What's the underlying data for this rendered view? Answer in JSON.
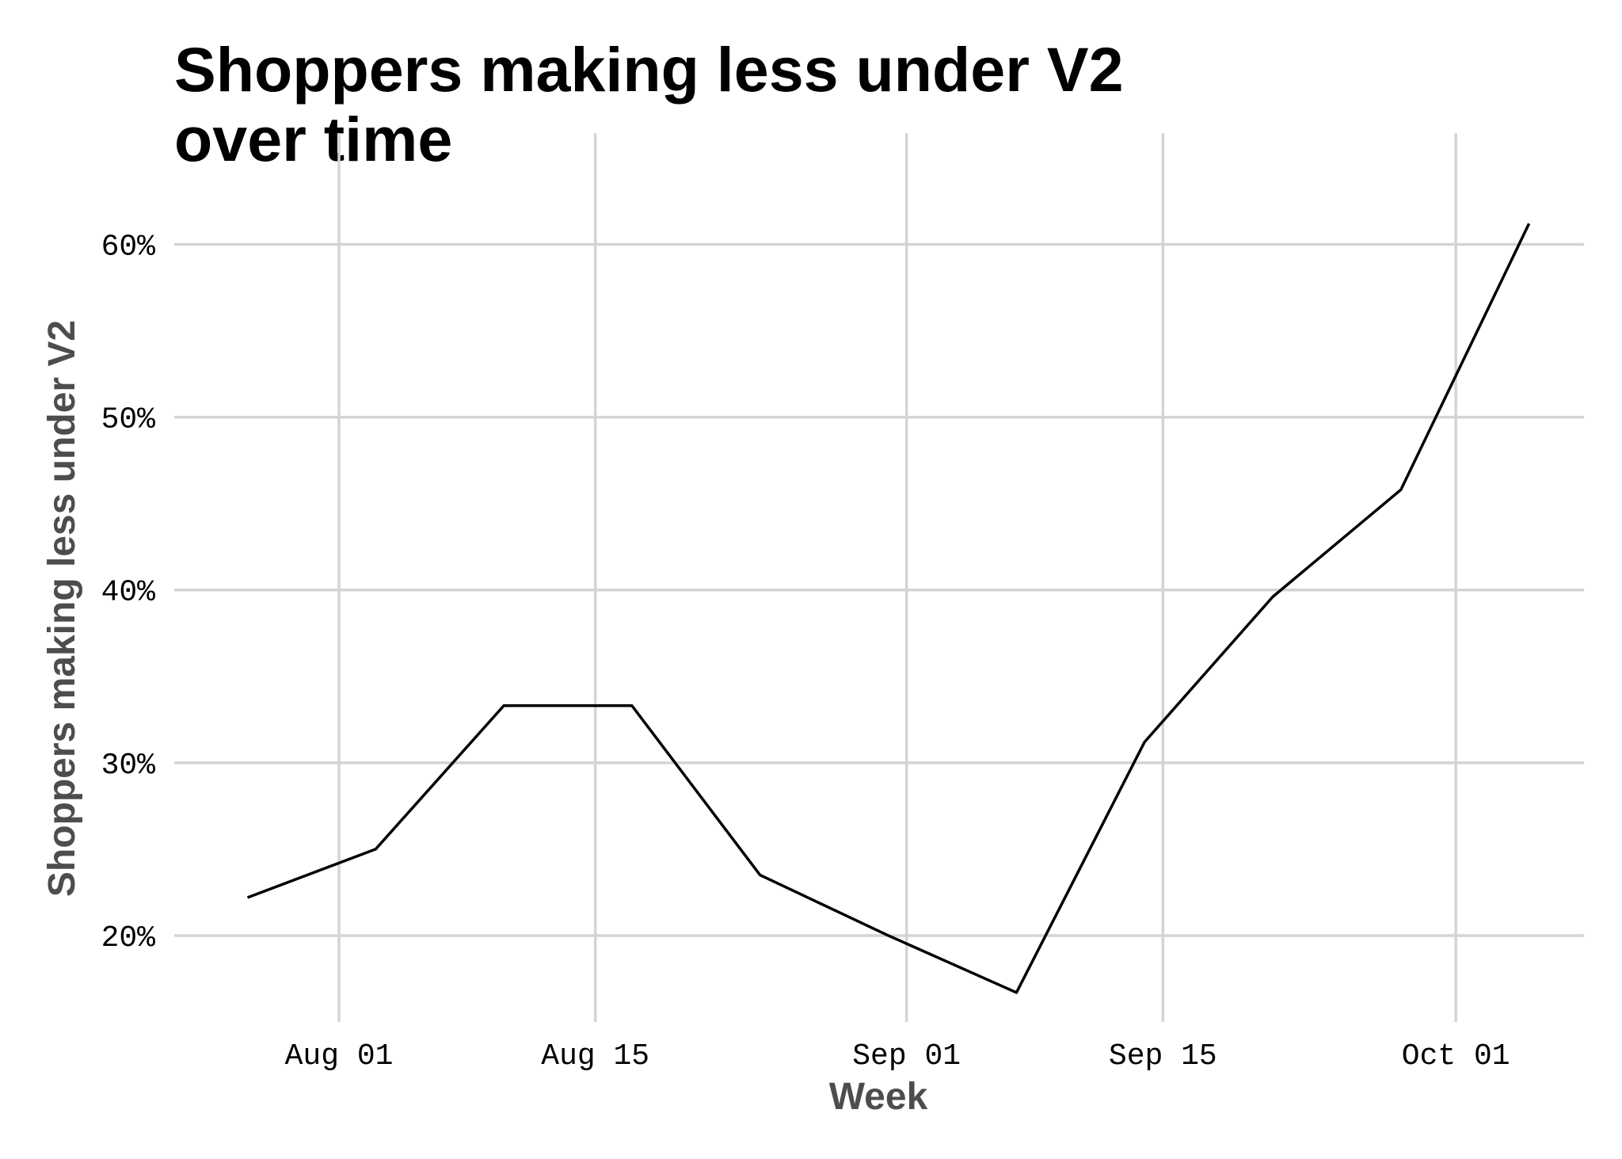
{
  "chart_data": {
    "type": "line",
    "title_lines": [
      "Shoppers making less under V2",
      "over time"
    ],
    "xlabel": "Week",
    "ylabel": "Shoppers making less under V2",
    "x_ticks": [
      "Aug 01",
      "Aug 15",
      "Sep 01",
      "Sep 15",
      "Oct 01"
    ],
    "y_ticks": [
      "20%",
      "30%",
      "40%",
      "50%",
      "60%"
    ],
    "y_tick_values": [
      0.2,
      0.3,
      0.4,
      0.5,
      0.6
    ],
    "ylim": [
      0.15,
      0.63
    ],
    "xlim": [
      "2019-07-23",
      "2019-10-08"
    ],
    "grid": true,
    "x": [
      "2019-07-27",
      "2019-08-03",
      "2019-08-10",
      "2019-08-17",
      "2019-08-24",
      "2019-08-31",
      "2019-09-07",
      "2019-09-14",
      "2019-09-21",
      "2019-09-28",
      "2019-10-05"
    ],
    "values": [
      0.222,
      0.25,
      0.333,
      0.333,
      0.235,
      0.2,
      0.167,
      0.312,
      0.396,
      0.458,
      0.612
    ],
    "line_color": "#000000",
    "grid_color": "#d4d4d4"
  }
}
